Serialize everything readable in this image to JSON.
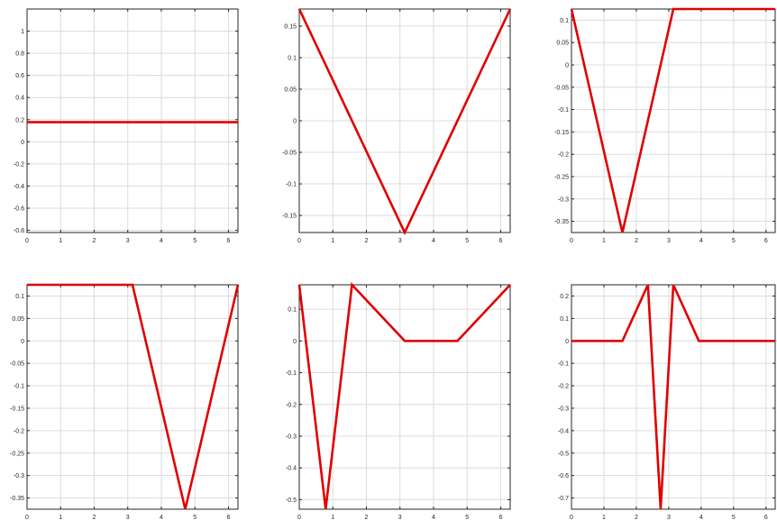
{
  "chart_data": [
    {
      "type": "line",
      "xlim": [
        0,
        6.2832
      ],
      "ylim": [
        -0.82,
        1.2
      ],
      "xticks": [
        0,
        1,
        2,
        3,
        4,
        5,
        6
      ],
      "xticklabels": [
        "0",
        "1",
        "2",
        "3",
        "4",
        "5",
        "6"
      ],
      "yticks": [
        -0.8,
        -0.6,
        -0.4,
        -0.2,
        0,
        0.2,
        0.4,
        0.6,
        0.8,
        1
      ],
      "yticklabels": [
        "-0.8",
        "-0.6",
        "-0.4",
        "-0.2",
        "0",
        "0.2",
        "0.4",
        "0.6",
        "0.8",
        "1"
      ],
      "grid": true,
      "color": "#e00000",
      "series": [
        {
          "x": [
            0,
            6.2832
          ],
          "y": [
            0.177,
            0.177
          ]
        }
      ]
    },
    {
      "type": "line",
      "xlim": [
        0,
        6.2832
      ],
      "ylim": [
        -0.177,
        0.177
      ],
      "xticks": [
        0,
        1,
        2,
        3,
        4,
        5,
        6
      ],
      "xticklabels": [
        "0",
        "1",
        "2",
        "3",
        "4",
        "5",
        "6"
      ],
      "yticks": [
        -0.15,
        -0.1,
        -0.05,
        0,
        0.05,
        0.1,
        0.15
      ],
      "yticklabels": [
        "-0.15",
        "-0.1",
        "-0.05",
        "0",
        "0.05",
        "0.1",
        "0.15"
      ],
      "grid": true,
      "color": "#e00000",
      "series": [
        {
          "x": [
            0,
            3.1416,
            6.2832
          ],
          "y": [
            0.177,
            -0.177,
            0.177
          ]
        }
      ]
    },
    {
      "type": "line",
      "xlim": [
        0,
        6.2832
      ],
      "ylim": [
        -0.375,
        0.125
      ],
      "xticks": [
        0,
        1,
        2,
        3,
        4,
        5,
        6
      ],
      "xticklabels": [
        "0",
        "1",
        "2",
        "3",
        "4",
        "5",
        "6"
      ],
      "yticks": [
        -0.35,
        -0.3,
        -0.25,
        -0.2,
        -0.15,
        -0.1,
        -0.05,
        0,
        0.05,
        0.1
      ],
      "yticklabels": [
        "-0.35",
        "-0.3",
        "-0.25",
        "-0.2",
        "-0.15",
        "-0.1",
        "-0.05",
        "0",
        "0.05",
        "0.1"
      ],
      "grid": true,
      "color": "#e00000",
      "series": [
        {
          "x": [
            0,
            1.5708,
            3.1416,
            6.2832
          ],
          "y": [
            0.125,
            -0.375,
            0.125,
            0.125
          ]
        }
      ]
    },
    {
      "type": "line",
      "xlim": [
        0,
        6.2832
      ],
      "ylim": [
        -0.375,
        0.125
      ],
      "xticks": [
        0,
        1,
        2,
        3,
        4,
        5,
        6
      ],
      "xticklabels": [
        "0",
        "1",
        "2",
        "3",
        "4",
        "5",
        "6"
      ],
      "yticks": [
        -0.35,
        -0.3,
        -0.25,
        -0.2,
        -0.15,
        -0.1,
        -0.05,
        0,
        0.05,
        0.1
      ],
      "yticklabels": [
        "-0.35",
        "-0.3",
        "-0.25",
        "-0.2",
        "-0.15",
        "-0.1",
        "-0.05",
        "0",
        "0.05",
        "0.1"
      ],
      "grid": true,
      "color": "#e00000",
      "series": [
        {
          "x": [
            0,
            3.1416,
            4.7124,
            6.2832
          ],
          "y": [
            0.125,
            0.125,
            -0.375,
            0.125
          ]
        }
      ]
    },
    {
      "type": "line",
      "xlim": [
        0,
        6.2832
      ],
      "ylim": [
        -0.53,
        0.177
      ],
      "xticks": [
        0,
        1,
        2,
        3,
        4,
        5,
        6
      ],
      "xticklabels": [
        "0",
        "1",
        "2",
        "3",
        "4",
        "5",
        "6"
      ],
      "yticks": [
        -0.5,
        -0.4,
        -0.3,
        -0.2,
        -0.1,
        0,
        0.1
      ],
      "yticklabels": [
        "-0.5",
        "-0.4",
        "-0.3",
        "-0.2",
        "-0.1",
        "0",
        "0.1"
      ],
      "grid": true,
      "color": "#e00000",
      "series": [
        {
          "x": [
            0,
            0.7854,
            1.5708,
            3.1416,
            4.7124,
            6.2832
          ],
          "y": [
            0.177,
            -0.53,
            0.177,
            0,
            0,
            0.177
          ]
        }
      ]
    },
    {
      "type": "line",
      "xlim": [
        0,
        6.2832
      ],
      "ylim": [
        -0.75,
        0.25
      ],
      "xticks": [
        0,
        1,
        2,
        3,
        4,
        5,
        6
      ],
      "xticklabels": [
        "0",
        "1",
        "2",
        "3",
        "4",
        "5",
        "6"
      ],
      "yticks": [
        -0.7,
        -0.6,
        -0.5,
        -0.4,
        -0.3,
        -0.2,
        -0.1,
        0,
        0.1,
        0.2
      ],
      "yticklabels": [
        "-0.7",
        "-0.6",
        "-0.5",
        "-0.4",
        "-0.3",
        "-0.2",
        "-0.1",
        "0",
        "0.1",
        "0.2"
      ],
      "grid": true,
      "color": "#e00000",
      "series": [
        {
          "x": [
            0,
            1.5708,
            2.3562,
            2.7489,
            3.1416,
            3.927,
            6.2832
          ],
          "y": [
            0,
            0,
            0.25,
            -0.75,
            0.25,
            0,
            0
          ]
        }
      ]
    }
  ]
}
